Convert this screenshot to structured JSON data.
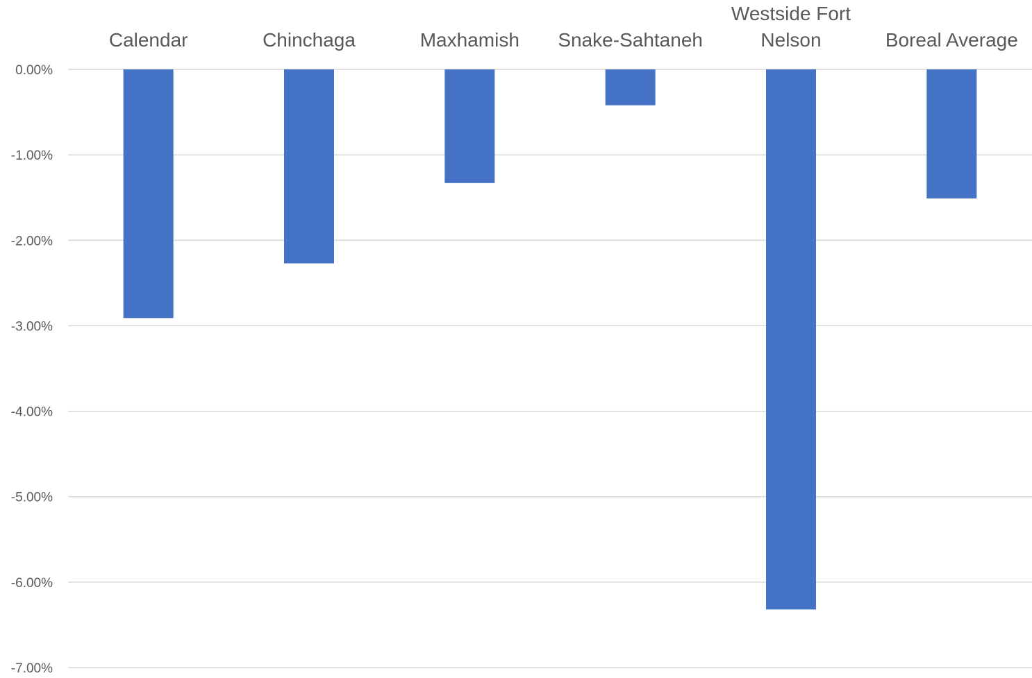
{
  "chart_data": {
    "type": "bar",
    "orientation": "vertical",
    "categories": [
      "Calendar",
      "Chinchaga",
      "Maxhamish",
      "Snake-Sahtaneh",
      "Westside Fort Nelson",
      "Boreal Average"
    ],
    "category_label_lines": [
      [
        "Calendar"
      ],
      [
        "Chinchaga"
      ],
      [
        "Maxhamish"
      ],
      [
        "Snake-Sahtaneh"
      ],
      [
        "Westside Fort",
        "Nelson"
      ],
      [
        "Boreal Average"
      ]
    ],
    "values": [
      -2.91,
      -2.27,
      -1.33,
      -0.42,
      -6.32,
      -1.51
    ],
    "ylim": [
      -7,
      0
    ],
    "yticks": [
      0,
      -1,
      -2,
      -3,
      -4,
      -5,
      -6,
      -7
    ],
    "ytick_labels": [
      "0.00%",
      "-1.00%",
      "-2.00%",
      "-3.00%",
      "-4.00%",
      "-5.00%",
      "-6.00%",
      "-7.00%"
    ],
    "category_labels_position": "top",
    "bar_color": "#4472c4",
    "grid": true,
    "legend": "none",
    "title": "",
    "xlabel": "",
    "ylabel": ""
  }
}
